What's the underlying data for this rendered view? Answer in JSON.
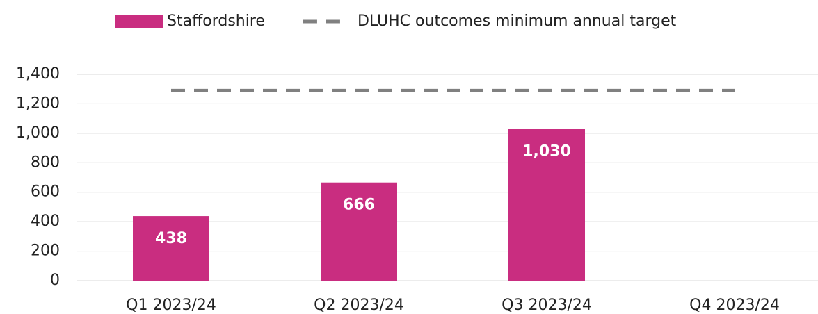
{
  "chart_data": {
    "type": "bar",
    "categories": [
      "Q1 2023/24",
      "Q2 2023/24",
      "Q3 2023/24",
      "Q4 2023/24"
    ],
    "series": [
      {
        "name": "Staffordshire",
        "type": "bar",
        "color": "#c92d80",
        "values": [
          438,
          666,
          1030,
          null
        ],
        "value_labels": [
          "438",
          "666",
          "1,030",
          null
        ]
      },
      {
        "name": "DLUHC outcomes minimum annual target",
        "type": "line",
        "dashed": true,
        "color": "#808080",
        "values": [
          1290,
          1290,
          1290,
          1290
        ]
      }
    ],
    "ylim": [
      0,
      1400
    ],
    "yticks": [
      0,
      200,
      400,
      600,
      800,
      {
        "value": 1000,
        "label": "1,000"
      },
      {
        "value": 1200,
        "label": "1,200"
      },
      {
        "value": 1400,
        "label": "1,400"
      }
    ],
    "grid": true,
    "legend": "top"
  }
}
